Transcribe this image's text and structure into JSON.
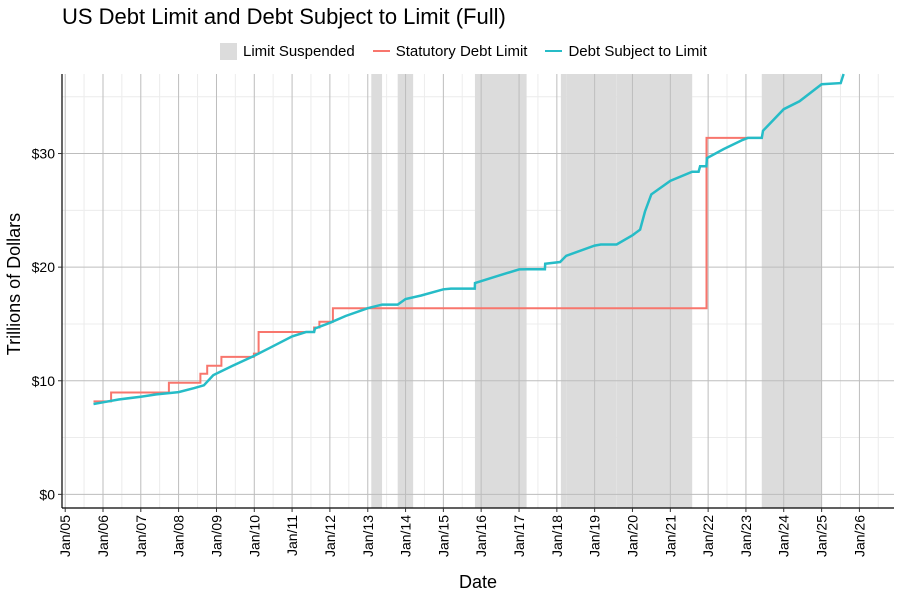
{
  "title": "US Debt Limit and Debt Subject to Limit (Full)",
  "legend": {
    "suspended_label": "Limit Suspended",
    "limit_label": "Statutory Debt Limit",
    "debt_label": "Debt Subject to Limit"
  },
  "colors": {
    "suspended": "#dcdcdc",
    "limit": "#f8766d",
    "debt": "#26bcc7",
    "grid_major": "#bdbdbd",
    "grid_minor": "#ececec"
  },
  "chart_data": {
    "type": "line",
    "title": "US Debt Limit and Debt Subject to Limit (Full)",
    "xlabel": "Date",
    "ylabel": "Trillions of Dollars",
    "xlim": [
      "2004-12-01",
      "2026-12-01"
    ],
    "ylim": [
      -1.2,
      37
    ],
    "grid": true,
    "legend_position": "top",
    "x_tick_labels": [
      "Jan/05",
      "Jan/06",
      "Jan/07",
      "Jan/08",
      "Jan/09",
      "Jan/10",
      "Jan/11",
      "Jan/12",
      "Jan/13",
      "Jan/14",
      "Jan/15",
      "Jan/16",
      "Jan/17",
      "Jan/18",
      "Jan/19",
      "Jan/20",
      "Jan/21",
      "Jan/22",
      "Jan/23",
      "Jan/24",
      "Jan/25",
      "Jan/26"
    ],
    "x_tick_dates": [
      "2005-01-01",
      "2006-01-01",
      "2007-01-01",
      "2008-01-01",
      "2009-01-01",
      "2010-01-01",
      "2011-01-01",
      "2012-01-01",
      "2013-01-01",
      "2014-01-01",
      "2015-01-01",
      "2016-01-01",
      "2017-01-01",
      "2018-01-01",
      "2019-01-01",
      "2020-01-01",
      "2021-01-01",
      "2022-01-01",
      "2023-01-01",
      "2024-01-01",
      "2025-01-01",
      "2026-01-01"
    ],
    "y_ticks": [
      0,
      10,
      20,
      30
    ],
    "y_tick_labels": [
      "$0",
      "$10",
      "$20",
      "$30"
    ],
    "suspension_periods": [
      [
        "2013-02-04",
        "2013-05-19"
      ],
      [
        "2013-10-17",
        "2014-03-15"
      ],
      [
        "2015-11-02",
        "2017-03-15"
      ],
      [
        "2018-02-09",
        "2018-04-01"
      ],
      [
        "2018-04-01",
        "2019-08-01"
      ],
      [
        "2019-08-02",
        "2021-07-31"
      ],
      [
        "2023-06-03",
        "2025-01-01"
      ]
    ],
    "series": [
      {
        "name": "Statutory Debt Limit",
        "step": true,
        "points": [
          [
            "2005-10-01",
            8.18
          ],
          [
            "2006-03-20",
            8.97
          ],
          [
            "2007-09-29",
            9.82
          ],
          [
            "2008-07-30",
            10.62
          ],
          [
            "2008-10-03",
            11.32
          ],
          [
            "2009-02-17",
            12.1
          ],
          [
            "2009-12-28",
            12.39
          ],
          [
            "2010-02-12",
            14.29
          ],
          [
            "2011-08-02",
            14.69
          ],
          [
            "2011-09-22",
            15.19
          ],
          [
            "2012-01-30",
            16.39
          ],
          [
            "2013-02-04",
            16.39
          ],
          [
            "2021-12-16",
            31.38
          ],
          [
            "2023-06-03",
            31.38
          ]
        ]
      },
      {
        "name": "Debt Subject to Limit",
        "step": false,
        "points": [
          [
            "2005-10-01",
            7.95
          ],
          [
            "2006-01-01",
            8.1
          ],
          [
            "2006-06-01",
            8.35
          ],
          [
            "2007-01-01",
            8.6
          ],
          [
            "2007-06-01",
            8.8
          ],
          [
            "2008-01-01",
            9.0
          ],
          [
            "2008-06-01",
            9.35
          ],
          [
            "2008-09-01",
            9.6
          ],
          [
            "2008-12-01",
            10.5
          ],
          [
            "2009-06-01",
            11.3
          ],
          [
            "2010-01-01",
            12.2
          ],
          [
            "2010-06-01",
            12.9
          ],
          [
            "2011-01-01",
            13.9
          ],
          [
            "2011-05-15",
            14.29
          ],
          [
            "2011-08-02",
            14.29
          ],
          [
            "2011-08-10",
            14.6
          ],
          [
            "2012-01-01",
            15.1
          ],
          [
            "2012-06-01",
            15.7
          ],
          [
            "2013-01-01",
            16.39
          ],
          [
            "2013-05-19",
            16.7
          ],
          [
            "2013-10-17",
            16.7
          ],
          [
            "2014-01-01",
            17.2
          ],
          [
            "2014-06-01",
            17.5
          ],
          [
            "2015-01-01",
            18.05
          ],
          [
            "2015-03-15",
            18.11
          ],
          [
            "2015-11-01",
            18.11
          ],
          [
            "2015-11-03",
            18.6
          ],
          [
            "2016-06-01",
            19.2
          ],
          [
            "2017-01-01",
            19.8
          ],
          [
            "2017-03-15",
            19.81
          ],
          [
            "2017-09-08",
            19.81
          ],
          [
            "2017-09-10",
            20.3
          ],
          [
            "2018-02-01",
            20.45
          ],
          [
            "2018-04-01",
            21.0
          ],
          [
            "2019-01-01",
            21.9
          ],
          [
            "2019-03-01",
            21.99
          ],
          [
            "2019-08-01",
            21.99
          ],
          [
            "2020-01-01",
            22.8
          ],
          [
            "2020-03-15",
            23.3
          ],
          [
            "2020-05-01",
            24.9
          ],
          [
            "2020-07-01",
            26.4
          ],
          [
            "2021-01-01",
            27.6
          ],
          [
            "2021-07-31",
            28.4
          ],
          [
            "2021-10-01",
            28.4
          ],
          [
            "2021-10-15",
            28.88
          ],
          [
            "2021-12-15",
            28.88
          ],
          [
            "2021-12-20",
            29.6
          ],
          [
            "2022-06-01",
            30.4
          ],
          [
            "2022-12-01",
            31.2
          ],
          [
            "2023-01-19",
            31.38
          ],
          [
            "2023-06-03",
            31.38
          ],
          [
            "2023-06-15",
            32.0
          ],
          [
            "2024-01-01",
            33.9
          ],
          [
            "2024-06-01",
            34.6
          ],
          [
            "2025-01-01",
            36.1
          ],
          [
            "2025-07-04",
            36.2
          ],
          [
            "2025-08-01",
            37.0
          ]
        ]
      }
    ]
  }
}
